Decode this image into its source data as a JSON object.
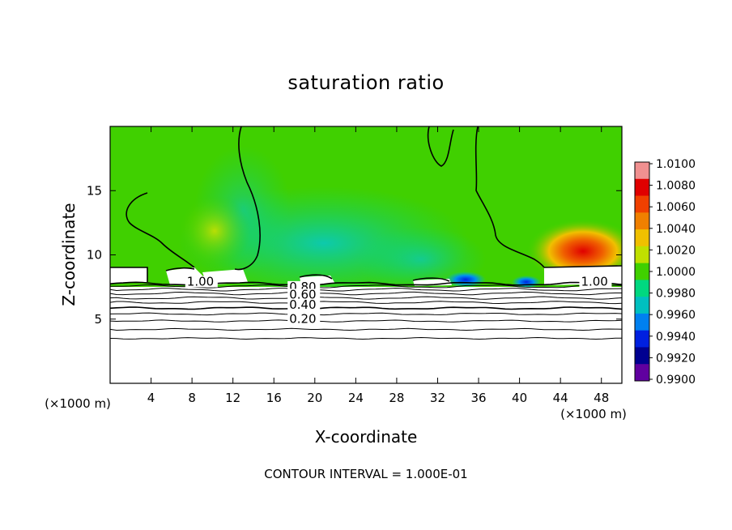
{
  "chart_data": {
    "type": "heatmap",
    "title": "saturation ratio",
    "xlabel": "X-coordinate",
    "ylabel": "Z-coordinate",
    "x_unit": "(×1000 m)",
    "y_unit": "(×1000 m)",
    "xlim": [
      0,
      50
    ],
    "ylim": [
      0,
      20
    ],
    "x_ticks": [
      4,
      8,
      12,
      16,
      20,
      24,
      28,
      32,
      36,
      40,
      44,
      48
    ],
    "y_ticks": [
      5,
      10,
      15
    ],
    "colorbar": {
      "min": 0.99,
      "max": 1.01,
      "labels": [
        "1.0100",
        "1.0080",
        "1.0060",
        "1.0040",
        "1.0020",
        "1.0000",
        "0.9980",
        "0.9960",
        "0.9940",
        "0.9920",
        "0.9900"
      ],
      "colors": [
        "#f09090",
        "#e00000",
        "#f04000",
        "#f08000",
        "#f0c000",
        "#c0e000",
        "#40d000",
        "#00d880",
        "#00c0c0",
        "#0080f0",
        "#0020e0",
        "#000090",
        "#6000a0"
      ]
    },
    "contour_labels": [
      {
        "text": "1.00",
        "x": 7.5,
        "z": 7.6
      },
      {
        "text": "1.00",
        "x": 46,
        "z": 7.6
      },
      {
        "text": "0.80",
        "x": 17.5,
        "z": 7.2
      },
      {
        "text": "0.60",
        "x": 17.5,
        "z": 6.6
      },
      {
        "text": "0.40",
        "x": 17.5,
        "z": 5.8
      },
      {
        "text": "0.20",
        "x": 17.5,
        "z": 4.7
      }
    ],
    "contour_interval": "1.000E-01",
    "grid": false
  },
  "footer": "CONTOUR INTERVAL = 1.000E-01"
}
